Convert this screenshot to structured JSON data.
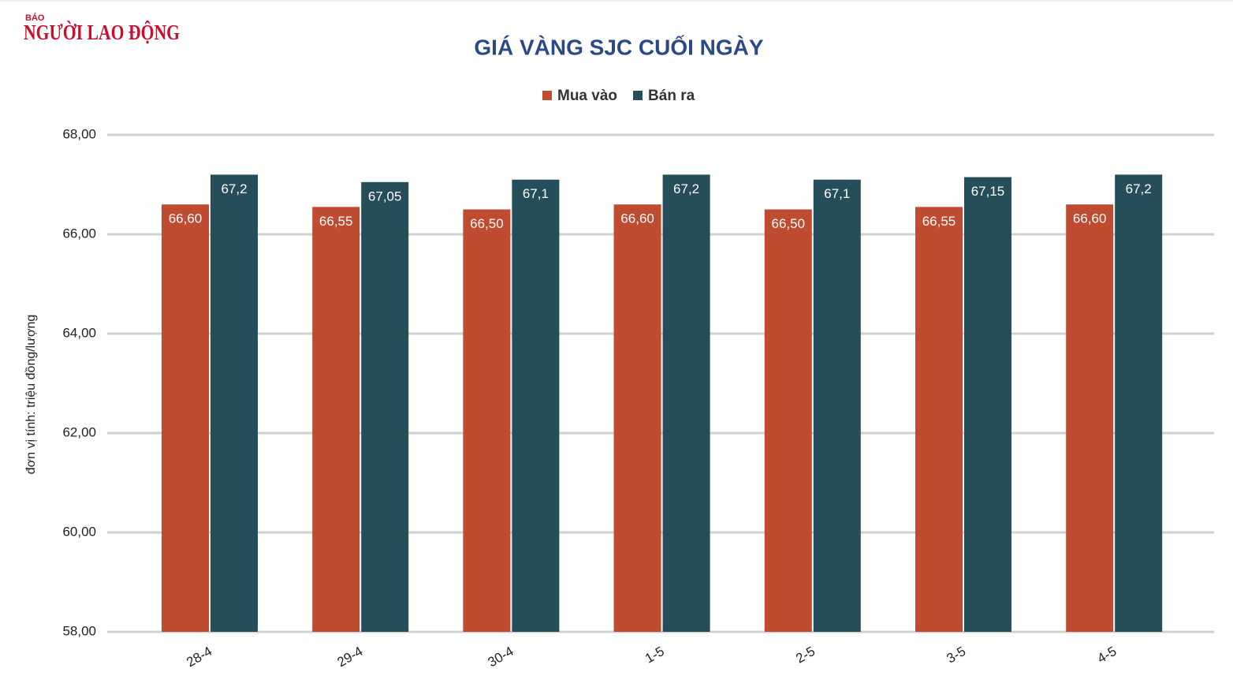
{
  "brand": {
    "small": "BÁO",
    "name": "NGƯỜI LAO ĐỘNG"
  },
  "chart_data": {
    "type": "bar",
    "title": "GIÁ VÀNG SJC CUỐI NGÀY",
    "y_label": "đơn vị tính: triệu đồng/lượng",
    "categories": [
      "28-4",
      "29-4",
      "30-4",
      "1-5",
      "2-5",
      "3-5",
      "4-5"
    ],
    "series": [
      {
        "name": "Mua vào",
        "color": "#bf4b31",
        "values": [
          66.6,
          66.55,
          66.5,
          66.6,
          66.5,
          66.55,
          66.6
        ],
        "value_labels": [
          "66,60",
          "66,55",
          "66,50",
          "66,60",
          "66,50",
          "66,55",
          "66,60"
        ]
      },
      {
        "name": "Bán ra",
        "color": "#264d5a",
        "values": [
          67.2,
          67.05,
          67.1,
          67.2,
          67.1,
          67.15,
          67.2
        ],
        "value_labels": [
          "67,2",
          "67,05",
          "67,1",
          "67,2",
          "67,1",
          "67,15",
          "67,2"
        ]
      }
    ],
    "ylim": [
      58,
      68
    ],
    "yticks": [
      {
        "value": 58,
        "label": "58,00"
      },
      {
        "value": 60,
        "label": "60,00"
      },
      {
        "value": 62,
        "label": "62,00"
      },
      {
        "value": 64,
        "label": "64,00"
      },
      {
        "value": 66,
        "label": "66,00"
      },
      {
        "value": 68,
        "label": "68,00"
      }
    ],
    "grid": true,
    "legend": "top"
  }
}
